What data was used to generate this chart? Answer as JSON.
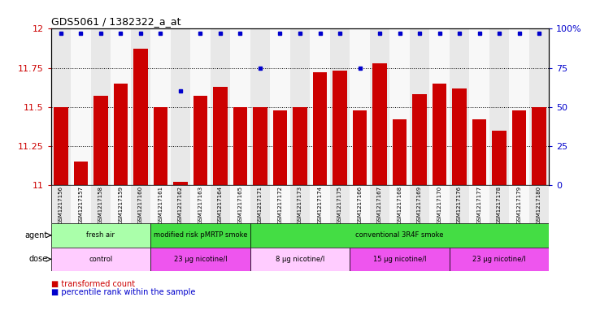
{
  "title": "GDS5061 / 1382322_a_at",
  "samples": [
    "GSM1217156",
    "GSM1217157",
    "GSM1217158",
    "GSM1217159",
    "GSM1217160",
    "GSM1217161",
    "GSM1217162",
    "GSM1217163",
    "GSM1217164",
    "GSM1217165",
    "GSM1217171",
    "GSM1217172",
    "GSM1217173",
    "GSM1217174",
    "GSM1217175",
    "GSM1217166",
    "GSM1217167",
    "GSM1217168",
    "GSM1217169",
    "GSM1217170",
    "GSM1217176",
    "GSM1217177",
    "GSM1217178",
    "GSM1217179",
    "GSM1217180"
  ],
  "bar_values": [
    11.5,
    11.15,
    11.57,
    11.65,
    11.87,
    11.5,
    11.02,
    11.57,
    11.63,
    11.5,
    11.5,
    11.48,
    11.5,
    11.72,
    11.73,
    11.48,
    11.78,
    11.42,
    11.58,
    11.65,
    11.62,
    11.42,
    11.35,
    11.48,
    11.5
  ],
  "percentile_values": [
    97,
    97,
    97,
    97,
    97,
    97,
    60,
    97,
    97,
    97,
    75,
    97,
    97,
    97,
    97,
    75,
    97,
    97,
    97,
    97,
    97,
    97,
    97,
    97,
    97
  ],
  "bar_color": "#cc0000",
  "dot_color": "#0000cc",
  "ylim_left": [
    11.0,
    12.0
  ],
  "ylim_right": [
    0,
    100
  ],
  "yticks_left": [
    11.0,
    11.25,
    11.5,
    11.75,
    12.0
  ],
  "yticks_right": [
    0,
    25,
    50,
    75,
    100
  ],
  "ytick_labels_left": [
    "11",
    "11.25",
    "11.5",
    "11.75",
    "12"
  ],
  "ytick_labels_right": [
    "0",
    "25",
    "50",
    "75",
    "100%"
  ],
  "left_ycolor": "#cc0000",
  "right_ycolor": "#0000cc",
  "agent_segments": [
    {
      "text": "fresh air",
      "start": 0,
      "end": 4,
      "color": "#aaffaa"
    },
    {
      "text": "modified risk pMRTP smoke",
      "start": 5,
      "end": 9,
      "color": "#44dd44"
    },
    {
      "text": "conventional 3R4F smoke",
      "start": 10,
      "end": 24,
      "color": "#44dd44"
    }
  ],
  "dose_segments": [
    {
      "text": "control",
      "start": 0,
      "end": 4,
      "color": "#ffccff"
    },
    {
      "text": "23 μg nicotine/l",
      "start": 5,
      "end": 9,
      "color": "#ee55ee"
    },
    {
      "text": "8 μg nicotine/l",
      "start": 10,
      "end": 14,
      "color": "#ffccff"
    },
    {
      "text": "15 μg nicotine/l",
      "start": 15,
      "end": 19,
      "color": "#ee55ee"
    },
    {
      "text": "23 μg nicotine/l",
      "start": 20,
      "end": 24,
      "color": "#ee55ee"
    }
  ],
  "legend": [
    {
      "label": "transformed count",
      "color": "#cc0000"
    },
    {
      "label": "percentile rank within the sample",
      "color": "#0000cc"
    }
  ],
  "bar_width": 0.7,
  "fig_width": 7.38,
  "fig_height": 3.93,
  "fig_dpi": 100
}
